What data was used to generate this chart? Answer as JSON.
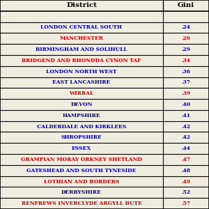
{
  "header": [
    "District",
    "Gini"
  ],
  "rows": [
    {
      "district": "LONDON CENTRAL SOUTH",
      "gini": ".24",
      "color": "#0000aa"
    },
    {
      "district": "MANCHESTER",
      "gini": ".26",
      "color": "#cc0000"
    },
    {
      "district": "BIRMINGHAM AND SOLIHULL",
      "gini": ".29",
      "color": "#0000aa"
    },
    {
      "district": "BRIDGEND AND RHONDDA CYNON TAF",
      "gini": ".34",
      "color": "#cc0000"
    },
    {
      "district": "LONDON NORTH WEST",
      "gini": ".36",
      "color": "#0000aa"
    },
    {
      "district": "EAST LANCASHIRE",
      "gini": ".37",
      "color": "#0000aa"
    },
    {
      "district": "WIRRAL",
      "gini": ".39",
      "color": "#cc0000"
    },
    {
      "district": "DEVON",
      "gini": ".40",
      "color": "#0000aa"
    },
    {
      "district": "HAMPSHIRE",
      "gini": ".41",
      "color": "#0000aa"
    },
    {
      "district": "CALDERDALE AND KIRKLEES",
      "gini": ".42",
      "color": "#0000aa"
    },
    {
      "district": "SHROPSHIRE",
      "gini": ".42",
      "color": "#0000aa"
    },
    {
      "district": "ESSEX",
      "gini": ".44",
      "color": "#0000aa"
    },
    {
      "district": "GRAMPIAN MORAY ORKNEY SHETLAND",
      "gini": ".47",
      "color": "#cc0000"
    },
    {
      "district": "GATESHEAD AND SOUTH TYNESIDE",
      "gini": ".48",
      "color": "#0000aa"
    },
    {
      "district": "LOTHIAN AND BORDERS",
      "gini": ".49",
      "color": "#cc0000"
    },
    {
      "district": "DERBYSHIRE",
      "gini": ".52",
      "color": "#0000aa"
    },
    {
      "district": "RENFREWS INVERCLYDE ARGYLL BUTE",
      "gini": ".57",
      "color": "#cc0000"
    }
  ],
  "bg_color": "#f0ece0",
  "header_font_size": 7.5,
  "row_font_size": 5.4,
  "col_split": 0.78,
  "fig_width": 3.0,
  "fig_height": 3.0
}
